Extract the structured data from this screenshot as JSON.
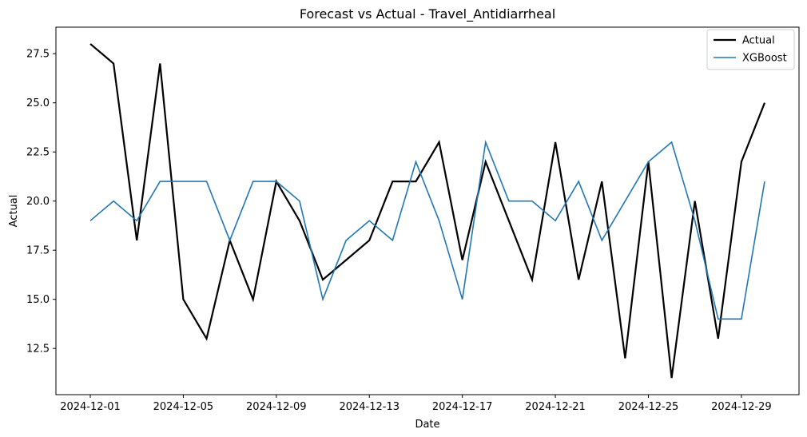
{
  "chart_data": {
    "type": "line",
    "title": "Forecast vs Actual - Travel_Antidiarrheal",
    "xlabel": "Date",
    "ylabel": "Actual",
    "x": [
      "2024-12-01",
      "2024-12-02",
      "2024-12-03",
      "2024-12-04",
      "2024-12-05",
      "2024-12-06",
      "2024-12-07",
      "2024-12-08",
      "2024-12-09",
      "2024-12-10",
      "2024-12-11",
      "2024-12-12",
      "2024-12-13",
      "2024-12-14",
      "2024-12-15",
      "2024-12-16",
      "2024-12-17",
      "2024-12-18",
      "2024-12-19",
      "2024-12-20",
      "2024-12-21",
      "2024-12-22",
      "2024-12-23",
      "2024-12-24",
      "2024-12-25",
      "2024-12-26",
      "2024-12-27",
      "2024-12-28",
      "2024-12-29",
      "2024-12-30"
    ],
    "xticks": [
      "2024-12-01",
      "2024-12-05",
      "2024-12-09",
      "2024-12-13",
      "2024-12-17",
      "2024-12-21",
      "2024-12-25",
      "2024-12-29"
    ],
    "yticks": [
      "12.5",
      "15.0",
      "17.5",
      "20.0",
      "22.5",
      "25.0",
      "27.5"
    ],
    "ylim": [
      10.15,
      28.85
    ],
    "legend_position": "top-right",
    "grid": false,
    "series": [
      {
        "name": "Actual",
        "color": "#000000",
        "values": [
          28,
          27,
          18,
          27,
          15,
          13,
          18,
          15,
          21,
          19,
          16,
          17,
          18,
          21,
          21,
          23,
          17,
          22,
          19,
          16,
          23,
          16,
          21,
          12,
          22,
          11,
          20,
          13,
          22,
          25
        ]
      },
      {
        "name": "XGBoost",
        "color": "#1f77b4",
        "values": [
          19,
          20,
          19,
          21,
          21,
          21,
          18,
          21,
          21,
          20,
          15,
          18,
          19,
          18,
          22,
          19,
          15,
          23,
          20,
          20,
          19,
          21,
          18,
          20,
          22,
          23,
          19,
          14,
          14,
          21
        ]
      }
    ]
  }
}
